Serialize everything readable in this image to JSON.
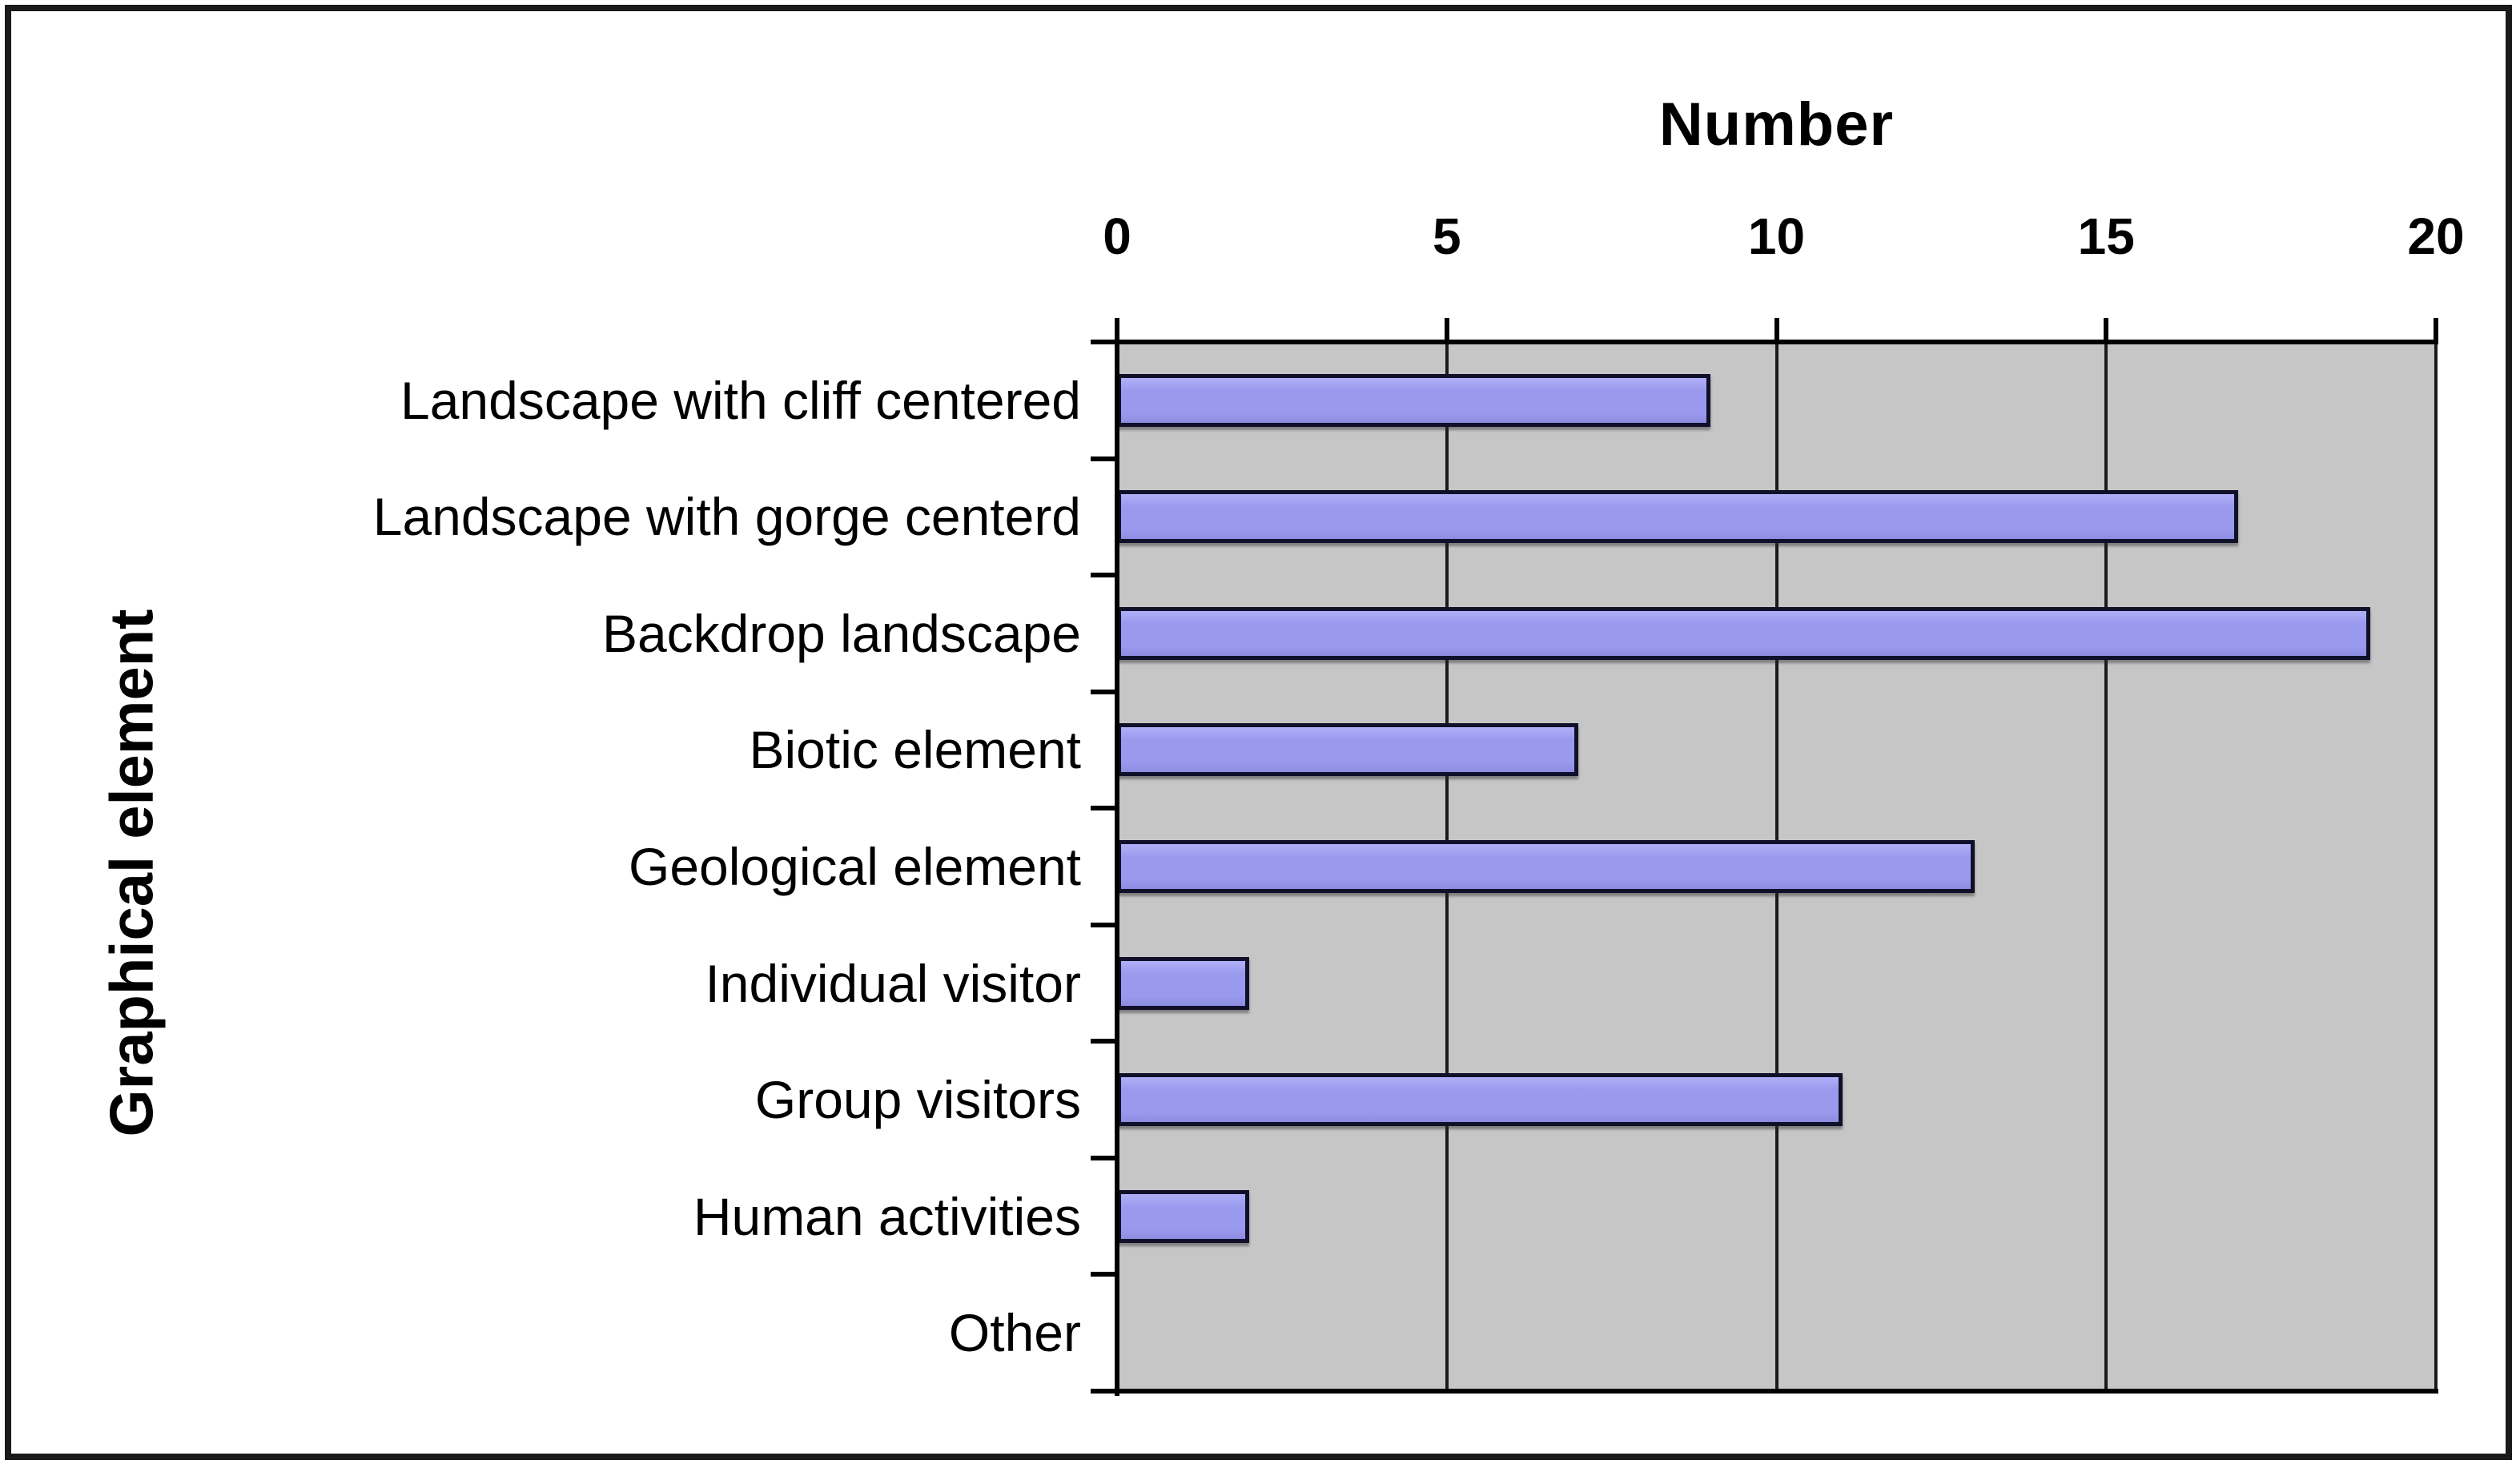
{
  "figure": {
    "background": "#FFFFFF",
    "frame_color": "#1A1A1A"
  },
  "chart_data": {
    "type": "bar",
    "orientation": "horizontal",
    "title": "Number",
    "xlabel": "Number",
    "ylabel": "Graphical element",
    "categories": [
      "Landscape with cliff centered",
      "Landscape with gorge centerd",
      "Backdrop landscape",
      "Biotic element",
      "Geological element",
      "Individual visitor",
      "Group visitors",
      "Human activities",
      "Other"
    ],
    "values": [
      9,
      17,
      19,
      7,
      13,
      2,
      11,
      2,
      0
    ],
    "xlim": [
      0,
      20
    ],
    "xticks": [
      0,
      5,
      10,
      15,
      20
    ],
    "grid": true,
    "legend": false,
    "plot_background": "#C6C6C6",
    "bar_fill": "#9999EE",
    "bar_fill_light": "#AFAFF8",
    "bar_fill_dark": "#8C8CE0",
    "bar_border": "#10102A",
    "grid_color": "#1A1A1A",
    "axis_color": "#000000",
    "text_color": "#000000"
  }
}
